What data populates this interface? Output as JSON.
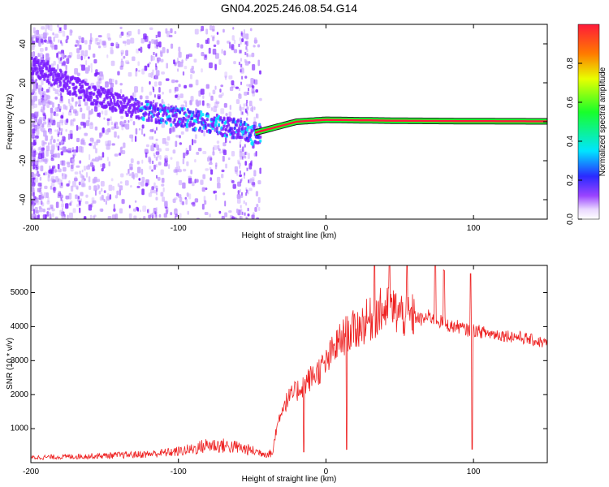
{
  "title": "GN04.2025.246.08.54.G14",
  "chart_data": [
    {
      "type": "heatmap",
      "xlabel": "Height of straight line (km)",
      "ylabel": "Frequency (Hz)",
      "xlim": [
        -200,
        150
      ],
      "ylim": [
        -50,
        50
      ],
      "xticks": [
        -200,
        -100,
        0,
        100
      ],
      "yticks": [
        -40,
        -20,
        0,
        20,
        40
      ],
      "colorbar": {
        "label": "Normalized spectral amplitude",
        "range": [
          0.0,
          1.0
        ],
        "ticks": [
          0.0,
          0.2,
          0.4,
          0.6,
          0.8
        ],
        "colors": [
          "#ffffff",
          "#c9a6ff",
          "#7a1cff",
          "#2a2aff",
          "#00e5ff",
          "#18ff2a",
          "#e8ff00",
          "#ff7a00",
          "#ff1a3a"
        ]
      },
      "ridge": {
        "x": [
          -200,
          -180,
          -160,
          -140,
          -120,
          -100,
          -80,
          -60,
          -50,
          -45,
          -40,
          -30,
          -20,
          -10,
          0,
          20,
          50,
          100,
          150
        ],
        "y": [
          30,
          22,
          15,
          10,
          6,
          3,
          0,
          -3,
          -6,
          -5,
          -4,
          -2,
          0,
          0.5,
          1,
          0.8,
          0.5,
          0.3,
          0.2
        ]
      }
    },
    {
      "type": "line",
      "xlabel": "Height of straight line (km)",
      "ylabel": "SNR (10 * v/v)",
      "xlim": [
        -200,
        150
      ],
      "ylim": [
        0,
        5800
      ],
      "xticks": [
        -200,
        -100,
        0,
        100
      ],
      "yticks": [
        1000,
        2000,
        3000,
        4000,
        5000
      ],
      "color": "#ee2222",
      "series": [
        {
          "x": [
            -200,
            -180,
            -160,
            -140,
            -120,
            -100,
            -90,
            -80,
            -70,
            -60,
            -50,
            -40,
            -36,
            -34,
            -30,
            -25,
            -20,
            -15,
            -10,
            -5,
            0,
            5,
            10,
            15,
            20,
            25,
            30,
            35,
            40,
            45,
            50,
            55,
            60,
            65,
            70,
            75,
            80,
            85,
            90,
            95,
            100,
            110,
            120,
            130,
            140,
            150
          ],
          "y": [
            150,
            170,
            190,
            220,
            250,
            330,
            400,
            520,
            500,
            450,
            350,
            260,
            280,
            900,
            1600,
            1900,
            2100,
            2300,
            2500,
            2700,
            2900,
            3300,
            3600,
            3800,
            3900,
            4100,
            4200,
            4400,
            4500,
            4500,
            4400,
            4300,
            4300,
            4200,
            4300,
            4200,
            4100,
            4000,
            4000,
            3900,
            3900,
            3800,
            3750,
            3700,
            3600,
            3500
          ]
        }
      ]
    }
  ]
}
